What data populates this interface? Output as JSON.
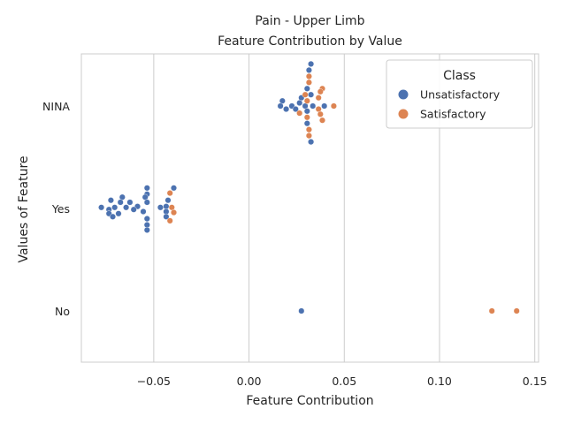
{
  "chart_data": {
    "type": "scatter",
    "subtype": "swarm",
    "title": "Pain - Upper Limb",
    "subtitle": "Feature Contribution by Value",
    "xlabel": "Feature Contribution",
    "ylabel": "Values of Feature",
    "xlim": [
      -0.088,
      0.152
    ],
    "x_ticks": [
      -0.05,
      0.0,
      0.05,
      0.1,
      0.15
    ],
    "x_tick_labels": [
      "−0.05",
      "0.00",
      "0.05",
      "0.10",
      "0.15"
    ],
    "categories": [
      "NINA",
      "Yes",
      "No"
    ],
    "grid": "vertical",
    "legend": {
      "title": "Class",
      "placement": "top-right"
    },
    "colors": {
      "Unsatisfactory": "#4c72b0",
      "Satisfactory": "#dd8452",
      "grid": "#cccccc",
      "frame": "#cccccc"
    },
    "series": [
      {
        "name": "Unsatisfactory",
        "points": [
          {
            "category": "NINA",
            "x": 0.0325,
            "offset": 0.41
          },
          {
            "category": "NINA",
            "x": 0.0315,
            "offset": 0.35
          },
          {
            "category": "NINA",
            "x": 0.0305,
            "offset": 0.17
          },
          {
            "category": "NINA",
            "x": 0.0325,
            "offset": 0.11
          },
          {
            "category": "NINA",
            "x": 0.0275,
            "offset": 0.08
          },
          {
            "category": "NINA",
            "x": 0.0175,
            "offset": 0.05
          },
          {
            "category": "NINA",
            "x": 0.0265,
            "offset": 0.03
          },
          {
            "category": "NINA",
            "x": 0.0225,
            "offset": 0.0
          },
          {
            "category": "NINA",
            "x": 0.0295,
            "offset": 0.0
          },
          {
            "category": "NINA",
            "x": 0.0165,
            "offset": 0.0
          },
          {
            "category": "NINA",
            "x": 0.0335,
            "offset": 0.0
          },
          {
            "category": "NINA",
            "x": 0.0395,
            "offset": 0.0
          },
          {
            "category": "NINA",
            "x": 0.0195,
            "offset": -0.03
          },
          {
            "category": "NINA",
            "x": 0.0245,
            "offset": -0.03
          },
          {
            "category": "NINA",
            "x": 0.0305,
            "offset": -0.05
          },
          {
            "category": "NINA",
            "x": 0.0305,
            "offset": -0.17
          },
          {
            "category": "NINA",
            "x": 0.0325,
            "offset": -0.35
          },
          {
            "category": "Yes",
            "x": -0.0535,
            "offset": 0.2
          },
          {
            "category": "Yes",
            "x": -0.0395,
            "offset": 0.2
          },
          {
            "category": "Yes",
            "x": -0.0535,
            "offset": 0.14
          },
          {
            "category": "Yes",
            "x": -0.0665,
            "offset": 0.11
          },
          {
            "category": "Yes",
            "x": -0.0545,
            "offset": 0.11
          },
          {
            "category": "Yes",
            "x": -0.0425,
            "offset": 0.08
          },
          {
            "category": "Yes",
            "x": -0.0725,
            "offset": 0.08
          },
          {
            "category": "Yes",
            "x": -0.0625,
            "offset": 0.06
          },
          {
            "category": "Yes",
            "x": -0.0675,
            "offset": 0.06
          },
          {
            "category": "Yes",
            "x": -0.0535,
            "offset": 0.06
          },
          {
            "category": "Yes",
            "x": -0.0435,
            "offset": 0.02
          },
          {
            "category": "Yes",
            "x": -0.0585,
            "offset": 0.02
          },
          {
            "category": "Yes",
            "x": -0.0645,
            "offset": 0.01
          },
          {
            "category": "Yes",
            "x": -0.0705,
            "offset": 0.01
          },
          {
            "category": "Yes",
            "x": -0.0775,
            "offset": 0.01
          },
          {
            "category": "Yes",
            "x": -0.0465,
            "offset": 0.01
          },
          {
            "category": "Yes",
            "x": -0.0735,
            "offset": -0.01
          },
          {
            "category": "Yes",
            "x": -0.0605,
            "offset": -0.01
          },
          {
            "category": "Yes",
            "x": -0.0435,
            "offset": -0.03
          },
          {
            "category": "Yes",
            "x": -0.0555,
            "offset": -0.03
          },
          {
            "category": "Yes",
            "x": -0.0685,
            "offset": -0.05
          },
          {
            "category": "Yes",
            "x": -0.0735,
            "offset": -0.05
          },
          {
            "category": "Yes",
            "x": -0.0715,
            "offset": -0.08
          },
          {
            "category": "Yes",
            "x": -0.0435,
            "offset": -0.08
          },
          {
            "category": "Yes",
            "x": -0.0535,
            "offset": -0.1
          },
          {
            "category": "Yes",
            "x": -0.0535,
            "offset": -0.16
          },
          {
            "category": "Yes",
            "x": -0.0535,
            "offset": -0.21
          },
          {
            "category": "No",
            "x": 0.0275,
            "offset": 0.0
          }
        ]
      },
      {
        "name": "Satisfactory",
        "points": [
          {
            "category": "NINA",
            "x": 0.0315,
            "offset": 0.29
          },
          {
            "category": "NINA",
            "x": 0.0315,
            "offset": 0.23
          },
          {
            "category": "NINA",
            "x": 0.0385,
            "offset": 0.17
          },
          {
            "category": "NINA",
            "x": 0.0375,
            "offset": 0.14
          },
          {
            "category": "NINA",
            "x": 0.0295,
            "offset": 0.11
          },
          {
            "category": "NINA",
            "x": 0.0365,
            "offset": 0.08
          },
          {
            "category": "NINA",
            "x": 0.0305,
            "offset": 0.05
          },
          {
            "category": "NINA",
            "x": 0.0445,
            "offset": 0.0
          },
          {
            "category": "NINA",
            "x": 0.0365,
            "offset": -0.03
          },
          {
            "category": "NINA",
            "x": 0.0265,
            "offset": -0.07
          },
          {
            "category": "NINA",
            "x": 0.0375,
            "offset": -0.08
          },
          {
            "category": "NINA",
            "x": 0.0305,
            "offset": -0.11
          },
          {
            "category": "NINA",
            "x": 0.0385,
            "offset": -0.14
          },
          {
            "category": "NINA",
            "x": 0.0315,
            "offset": -0.23
          },
          {
            "category": "NINA",
            "x": 0.0315,
            "offset": -0.29
          },
          {
            "category": "Yes",
            "x": -0.0415,
            "offset": 0.15
          },
          {
            "category": "Yes",
            "x": -0.0405,
            "offset": 0.01
          },
          {
            "category": "Yes",
            "x": -0.0395,
            "offset": -0.04
          },
          {
            "category": "Yes",
            "x": -0.0415,
            "offset": -0.12
          },
          {
            "category": "No",
            "x": 0.1275,
            "offset": 0.0
          },
          {
            "category": "No",
            "x": 0.1405,
            "offset": 0.0
          }
        ]
      }
    ]
  }
}
